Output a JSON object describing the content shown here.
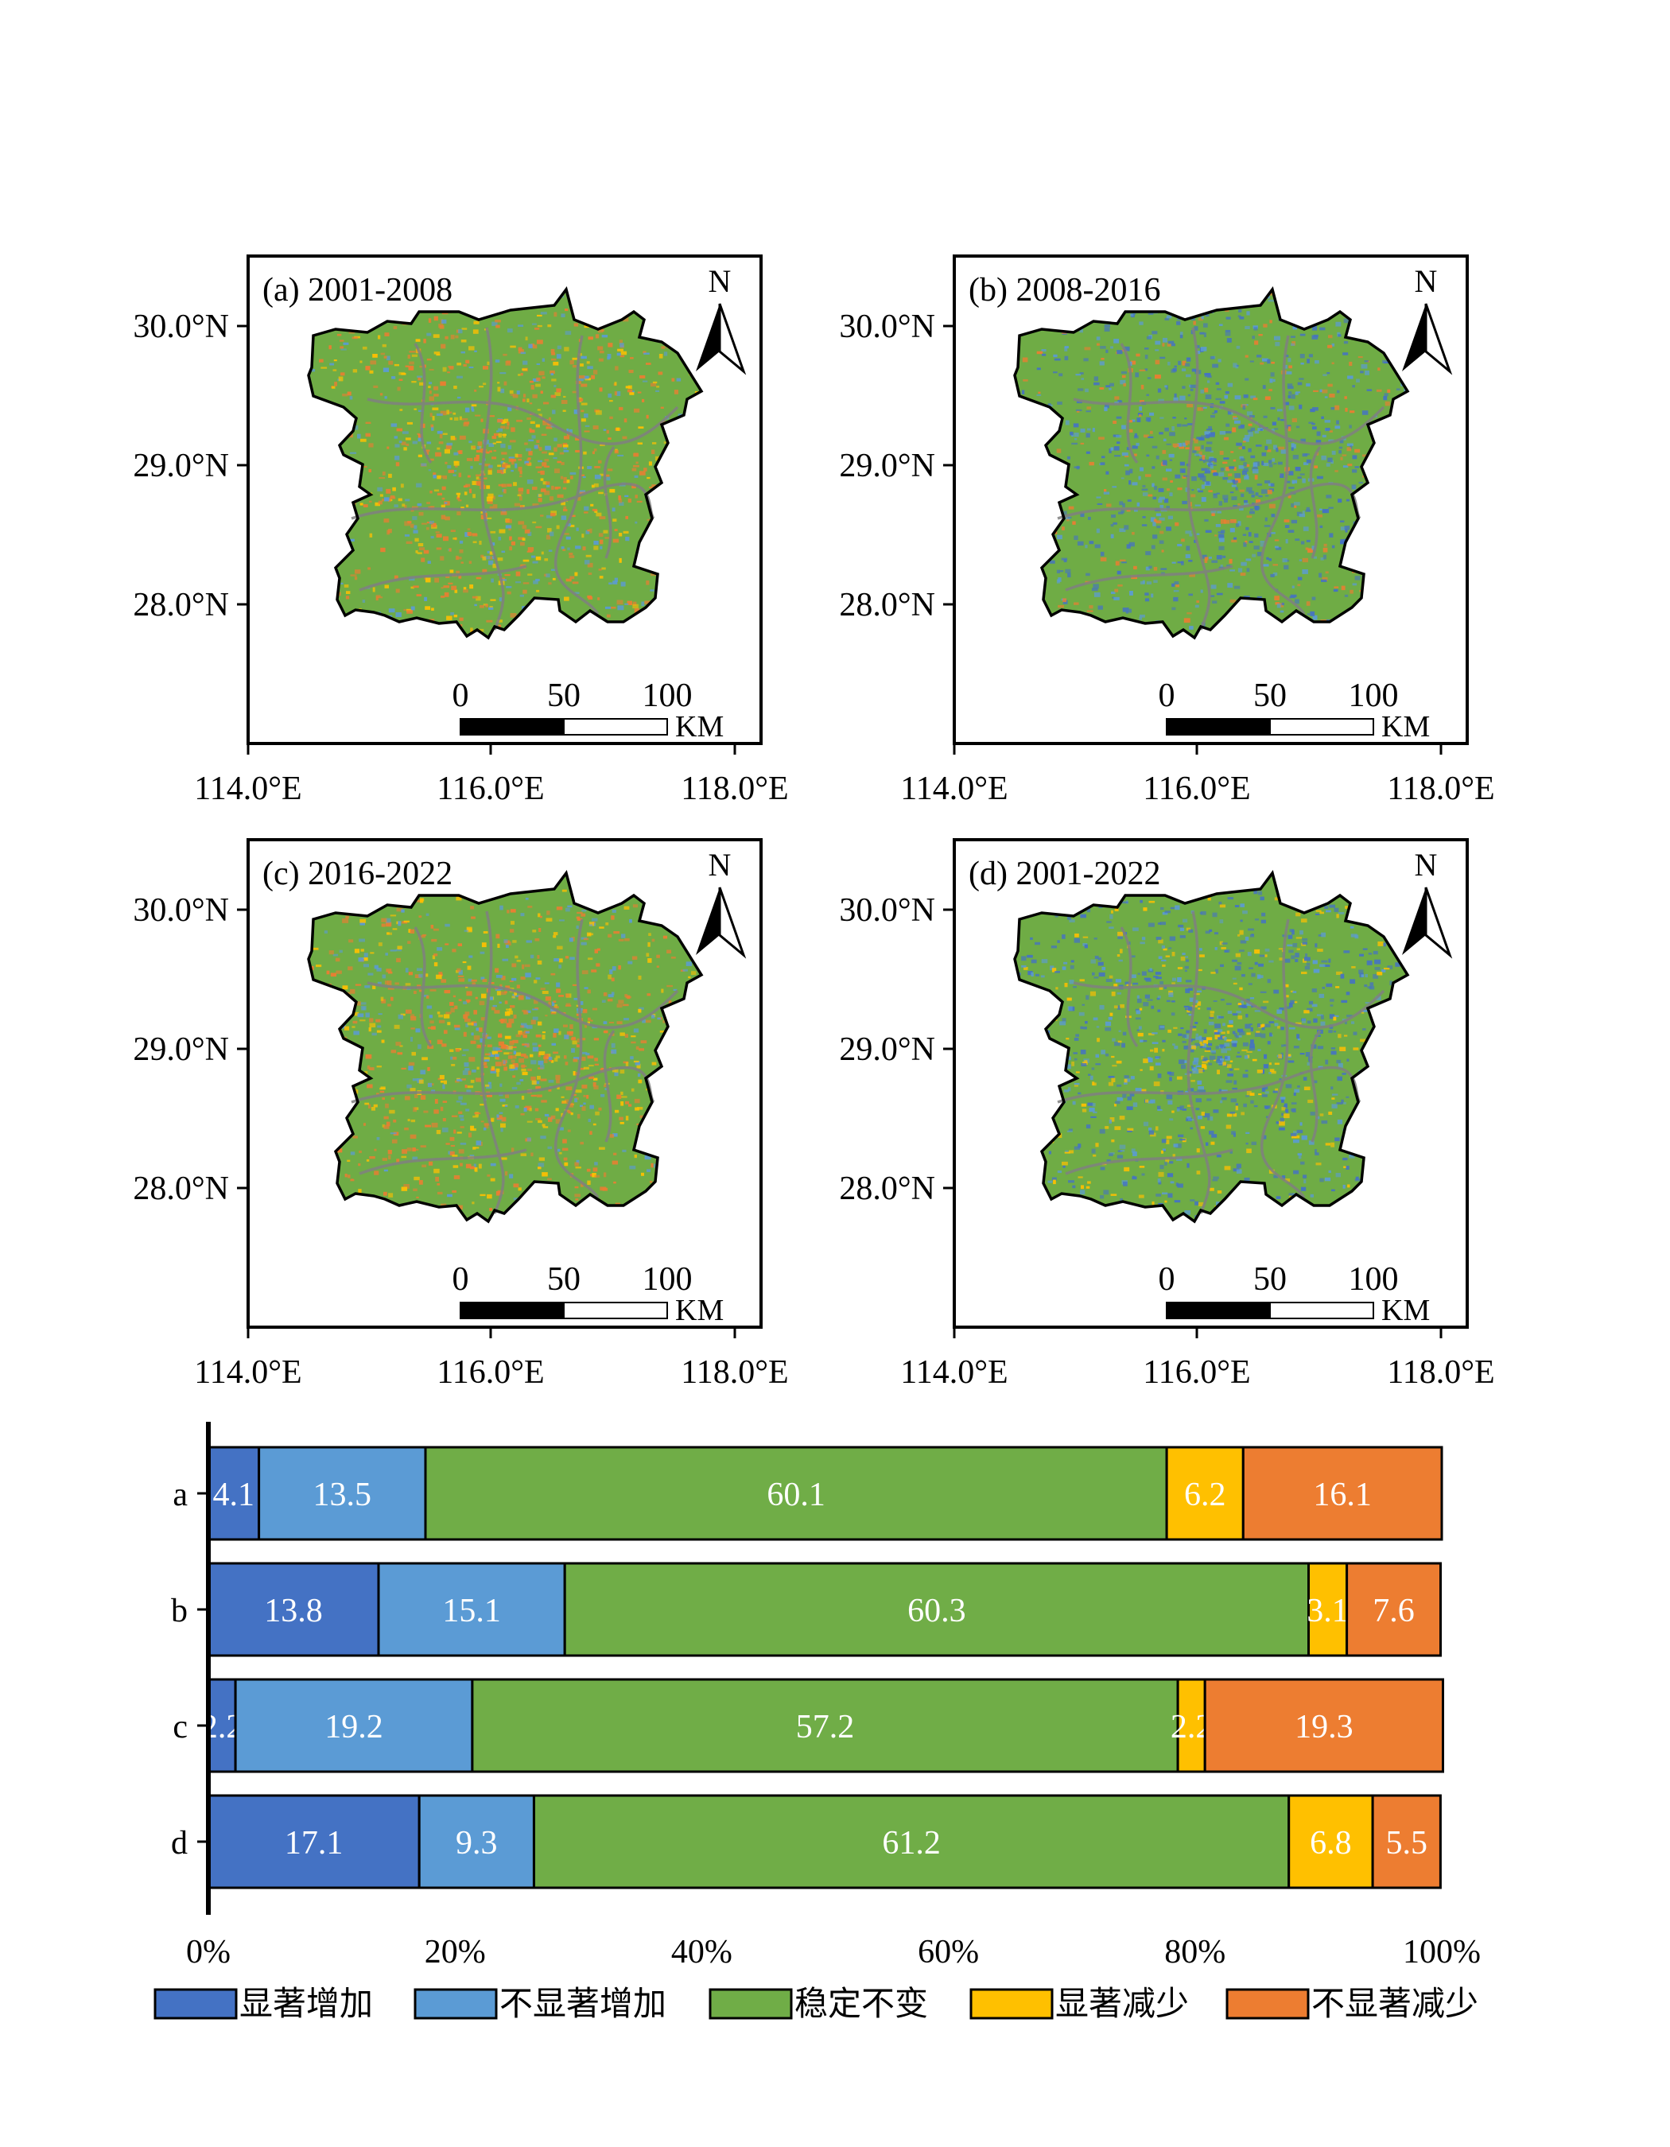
{
  "maps": [
    {
      "label": "(a) 2001-2008",
      "dominant": "#6fac45",
      "accents": [
        "#ed7d31",
        "#ffc000",
        "#ed7d31",
        "#5b9bd5"
      ]
    },
    {
      "label": "(b) 2008-2016",
      "dominant": "#6fac45",
      "accents": [
        "#4472c4",
        "#5b9bd5",
        "#4472c4",
        "#ed7d31"
      ]
    },
    {
      "label": "(c) 2016-2022",
      "dominant": "#6fac45",
      "accents": [
        "#ed7d31",
        "#ed7d31",
        "#ffc000",
        "#5b9bd5"
      ]
    },
    {
      "label": "(d) 2001-2022",
      "dominant": "#6fac45",
      "accents": [
        "#4472c4",
        "#5b9bd5",
        "#ffc000",
        "#4472c4"
      ]
    }
  ],
  "map_axes": {
    "lat_ticks": [
      "30.0°N",
      "29.0°N",
      "28.0°N"
    ],
    "lon_ticks": [
      "114.0°E",
      "116.0°E",
      "118.0°E"
    ],
    "north_label": "N",
    "scalebar": {
      "ticks": [
        "0",
        "50",
        "100"
      ],
      "unit": "KM"
    }
  },
  "chart_data": {
    "type": "bar",
    "orientation": "horizontal",
    "stacked": true,
    "categories": [
      "a",
      "b",
      "c",
      "d"
    ],
    "series": [
      {
        "name": "显著增加",
        "color": "#4472c4",
        "values": [
          4.1,
          13.8,
          2.2,
          17.1
        ]
      },
      {
        "name": "不显著增加",
        "color": "#5b9bd5",
        "values": [
          13.5,
          15.1,
          19.2,
          9.3
        ]
      },
      {
        "name": "稳定不变",
        "color": "#70ad47",
        "values": [
          60.1,
          60.3,
          57.2,
          61.2
        ]
      },
      {
        "name": "显著减少",
        "color": "#ffc000",
        "values": [
          6.2,
          3.1,
          2.2,
          6.8
        ]
      },
      {
        "name": "不显著减少",
        "color": "#ed7d31",
        "values": [
          16.1,
          7.6,
          19.3,
          5.5
        ]
      }
    ],
    "xlim": [
      0,
      100
    ],
    "x_ticks": [
      "0%",
      "20%",
      "40%",
      "60%",
      "80%",
      "100%"
    ],
    "legend_position": "bottom",
    "grid": false
  }
}
